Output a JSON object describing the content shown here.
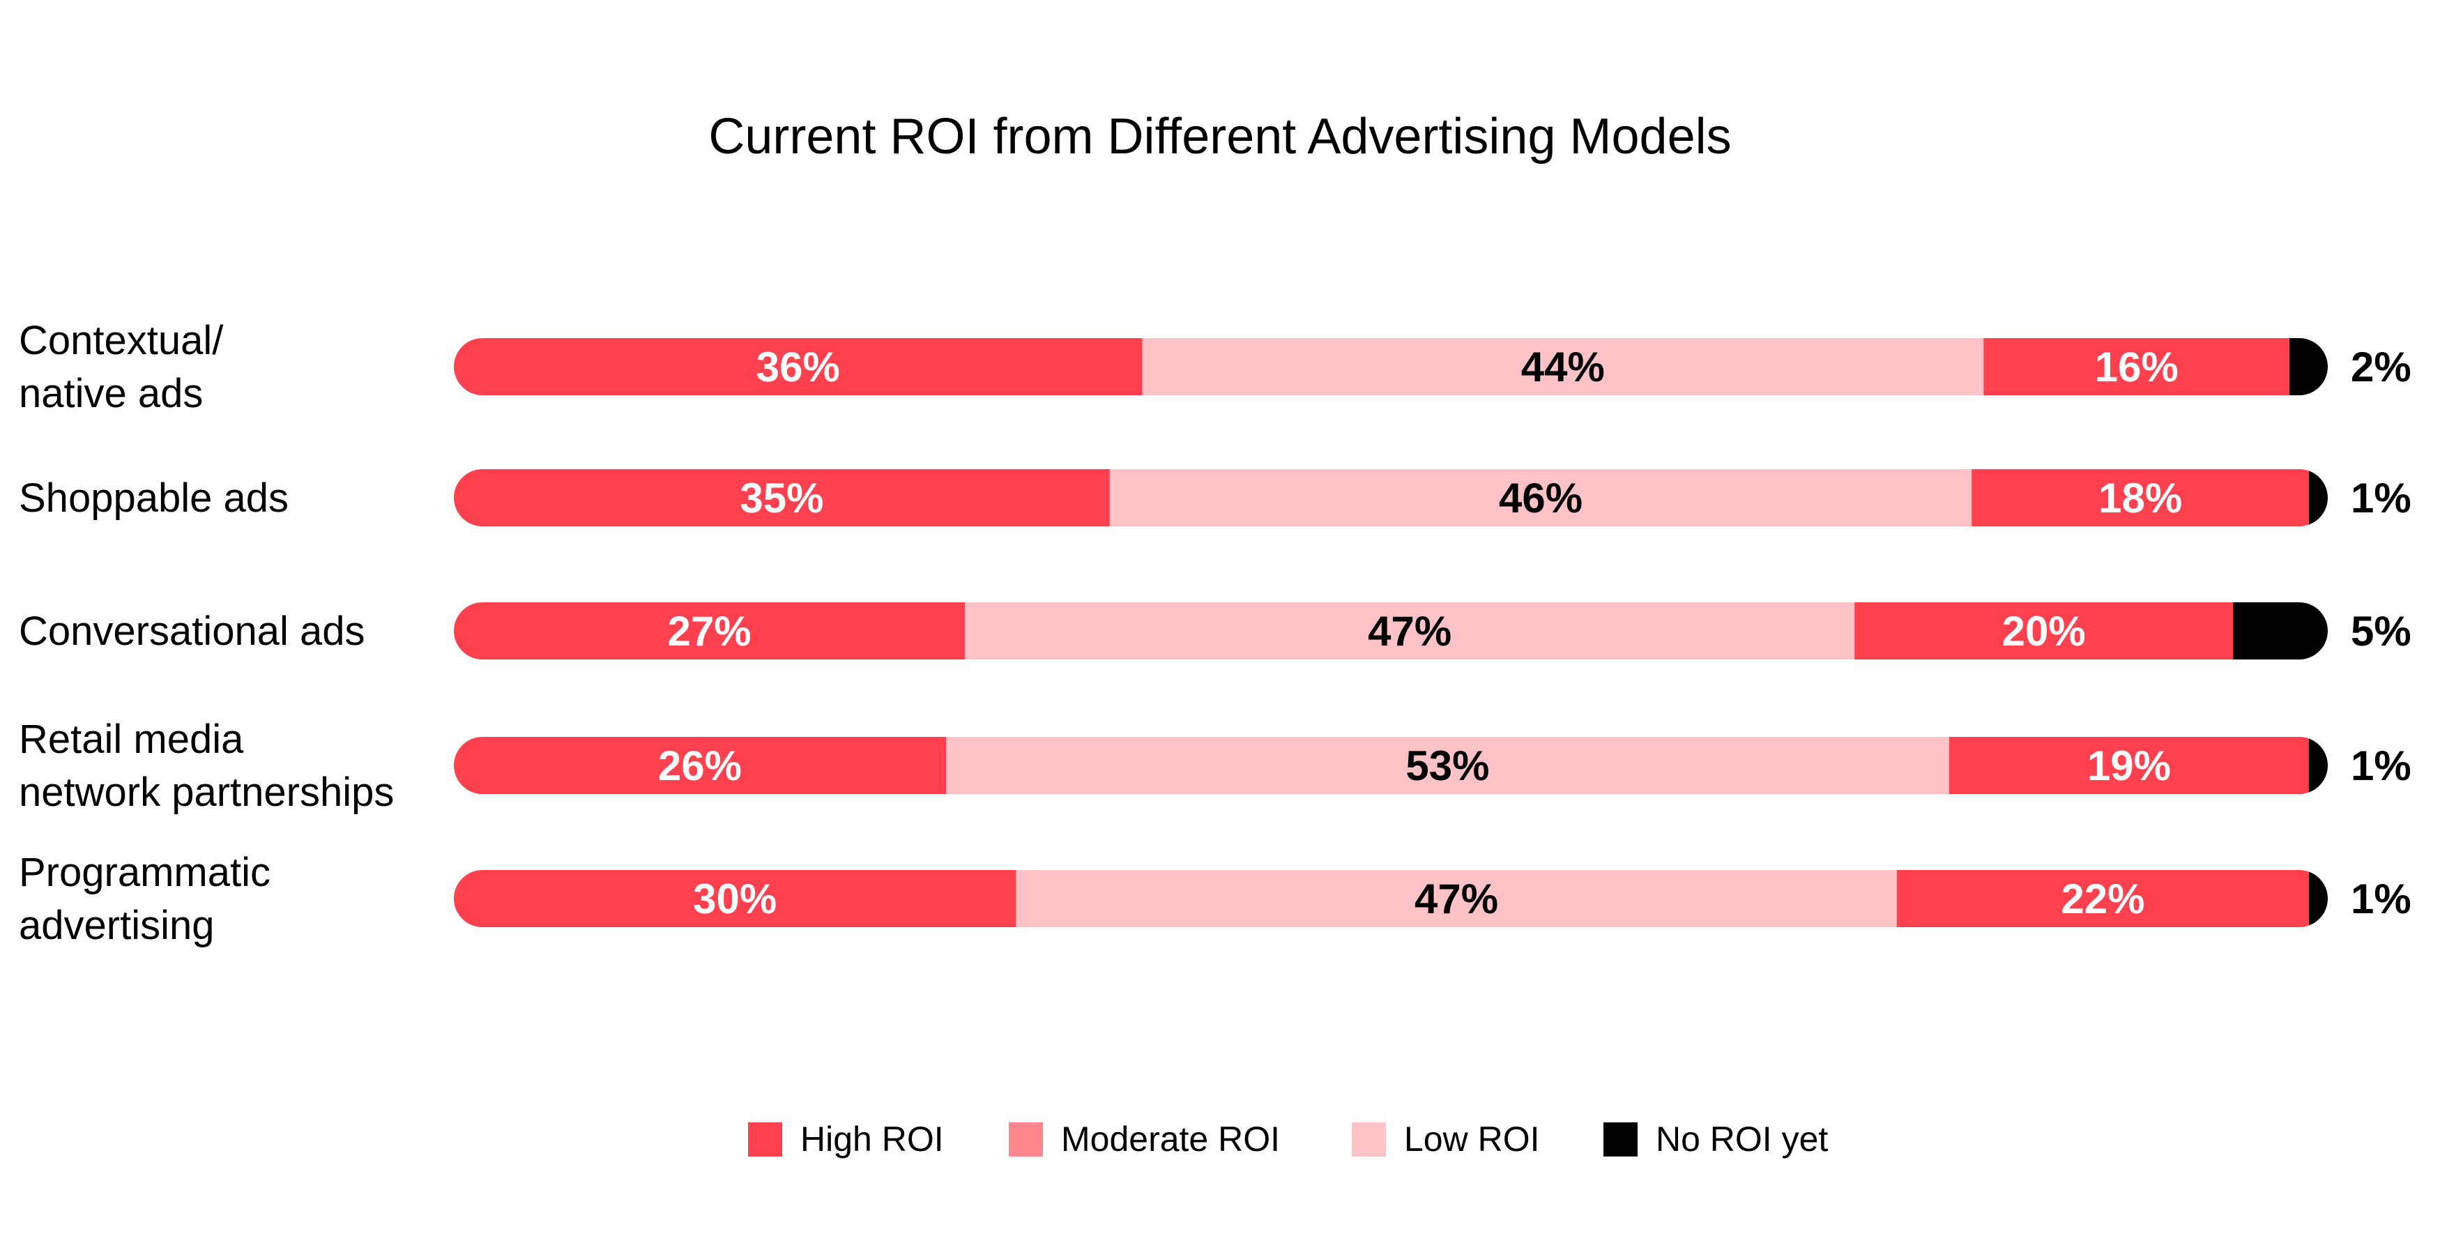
{
  "chart_data": {
    "type": "bar",
    "orientation": "horizontal",
    "stacked": true,
    "title": "Current ROI from Different Advertising Models",
    "categories": [
      [
        "Contextual/",
        "native ads"
      ],
      [
        "Shoppable ads"
      ],
      [
        "Conversational ads"
      ],
      [
        "Retail media",
        "network partnerships"
      ],
      [
        "Programmatic",
        "advertising"
      ]
    ],
    "series": [
      {
        "name": "High ROI",
        "values": [
          36,
          35,
          27,
          26,
          30
        ],
        "bar_color": "#ff414f",
        "label_color": "#ffffff"
      },
      {
        "name": "Moderate ROI",
        "values": [
          44,
          46,
          47,
          53,
          47
        ],
        "bar_color": "#ffc3c7",
        "label_color": "#000000"
      },
      {
        "name": "Low ROI",
        "values": [
          16,
          18,
          20,
          19,
          22
        ],
        "bar_color": "#ff414f",
        "label_color": "#ffffff"
      },
      {
        "name": "No ROI yet",
        "values": [
          2,
          1,
          5,
          1,
          1
        ],
        "bar_color": "#000000",
        "label_color": "#000000"
      }
    ],
    "value_suffix": "%",
    "legend": {
      "position": "bottom",
      "items": [
        {
          "label": "High ROI",
          "color": "#ff414f"
        },
        {
          "label": "Moderate ROI",
          "color": "#ff868d"
        },
        {
          "label": "Low ROI",
          "color": "#ffc3c7"
        },
        {
          "label": "No ROI yet",
          "color": "#000000"
        }
      ]
    },
    "grid": false,
    "axes_visible": false
  }
}
